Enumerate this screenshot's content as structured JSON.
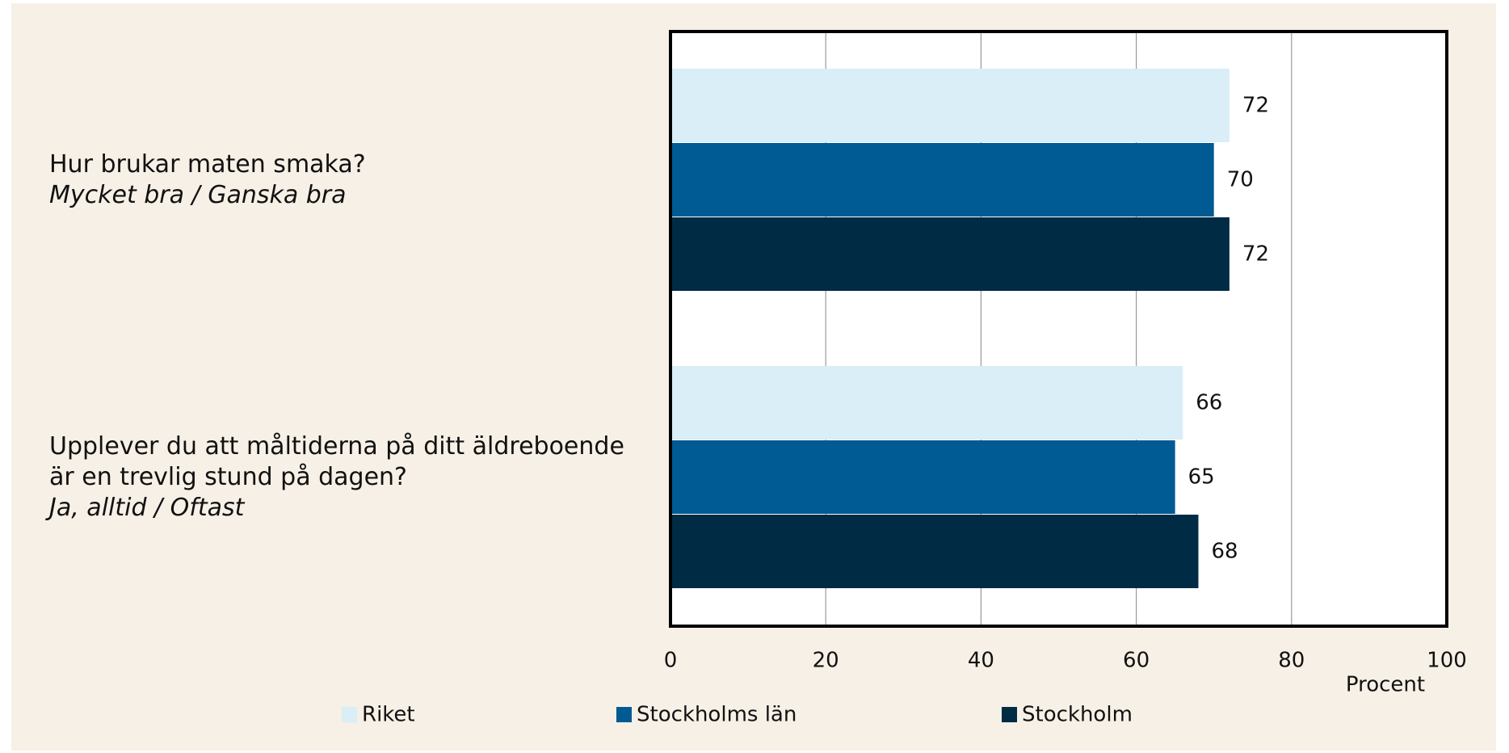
{
  "chart_data": {
    "type": "barh",
    "categories": [
      "Hur brukar maten smaka?",
      "Upplever du att måltiderna på ditt äldreboende är en trevlig stund på dagen?"
    ],
    "category_notes": [
      "Mycket bra / Ganska bra",
      "Ja, alltid / Oftast"
    ],
    "series": [
      {
        "name": "Riket",
        "color": "#d9eef6",
        "values": [
          72,
          66
        ]
      },
      {
        "name": "Stockholms län",
        "color": "#005a94",
        "values": [
          70,
          65
        ]
      },
      {
        "name": "Stockholm",
        "color": "#002b45",
        "values": [
          72,
          68
        ]
      }
    ],
    "xlabel": "Procent",
    "xlim": [
      0,
      100
    ],
    "xticks": [
      0,
      20,
      40,
      60,
      80,
      100
    ],
    "grid": true,
    "legend": "bottom"
  }
}
